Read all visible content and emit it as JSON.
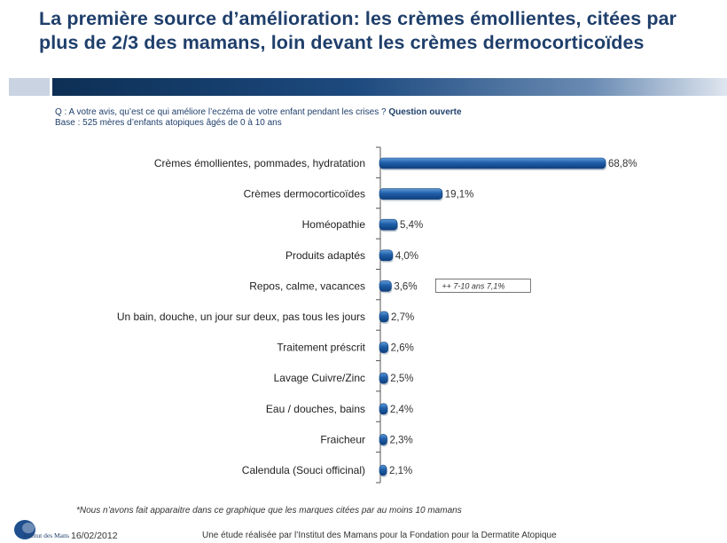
{
  "header": {
    "title_line1": "La première source d’amélioration: les crèmes émollientes, citées par",
    "title_line2": "plus de 2/3 des mamans, loin devant les crèmes dermocorticoïdes"
  },
  "question": {
    "text": "Q : A votre avis,  qu’est ce qui améliore l’eczéma de votre enfant pendant les crises ? ",
    "bold": "Question ouverte",
    "base": "Base :  525 mères d’enfants atopiques âgés de 0 à 10 ans"
  },
  "chart_data": {
    "type": "bar",
    "orientation": "horizontal",
    "categories": [
      "Crèmes émollientes, pommades, hydratation",
      "Crèmes dermocorticoïdes",
      "Homéopathie",
      "Produits adaptés",
      "Repos, calme, vacances",
      "Un bain, douche, un jour sur deux, pas tous les jours",
      "Traitement préscrit",
      "Lavage Cuivre/Zinc",
      "Eau / douches, bains",
      "Fraicheur",
      "Calendula (Souci officinal)"
    ],
    "values": [
      68.8,
      19.1,
      5.4,
      4.0,
      3.6,
      2.7,
      2.6,
      2.5,
      2.4,
      2.3,
      2.1
    ],
    "value_labels": [
      "68,8%",
      "19,1%",
      "5,4%",
      "4,0%",
      "3,6%",
      "2,7%",
      "2,6%",
      "2,5%",
      "2,4%",
      "2,3%",
      "2,1%"
    ],
    "annotation": {
      "category_index": 4,
      "text": "++ 7-10 ans 7,1%"
    },
    "bar_color": "#1f5fa8",
    "xlim": [
      0,
      70
    ],
    "grid": false
  },
  "footer": {
    "footnote": "*Nous n’avons fait apparaitre dans ce graphique que les marques citées par  au moins 10 mamans",
    "date": "16/02/2012",
    "source": "Une étude réalisée par l’Institut des Mamans pour la Fondation pour la Dermatite Atopique",
    "logo_text": "Institut des Mamans"
  }
}
